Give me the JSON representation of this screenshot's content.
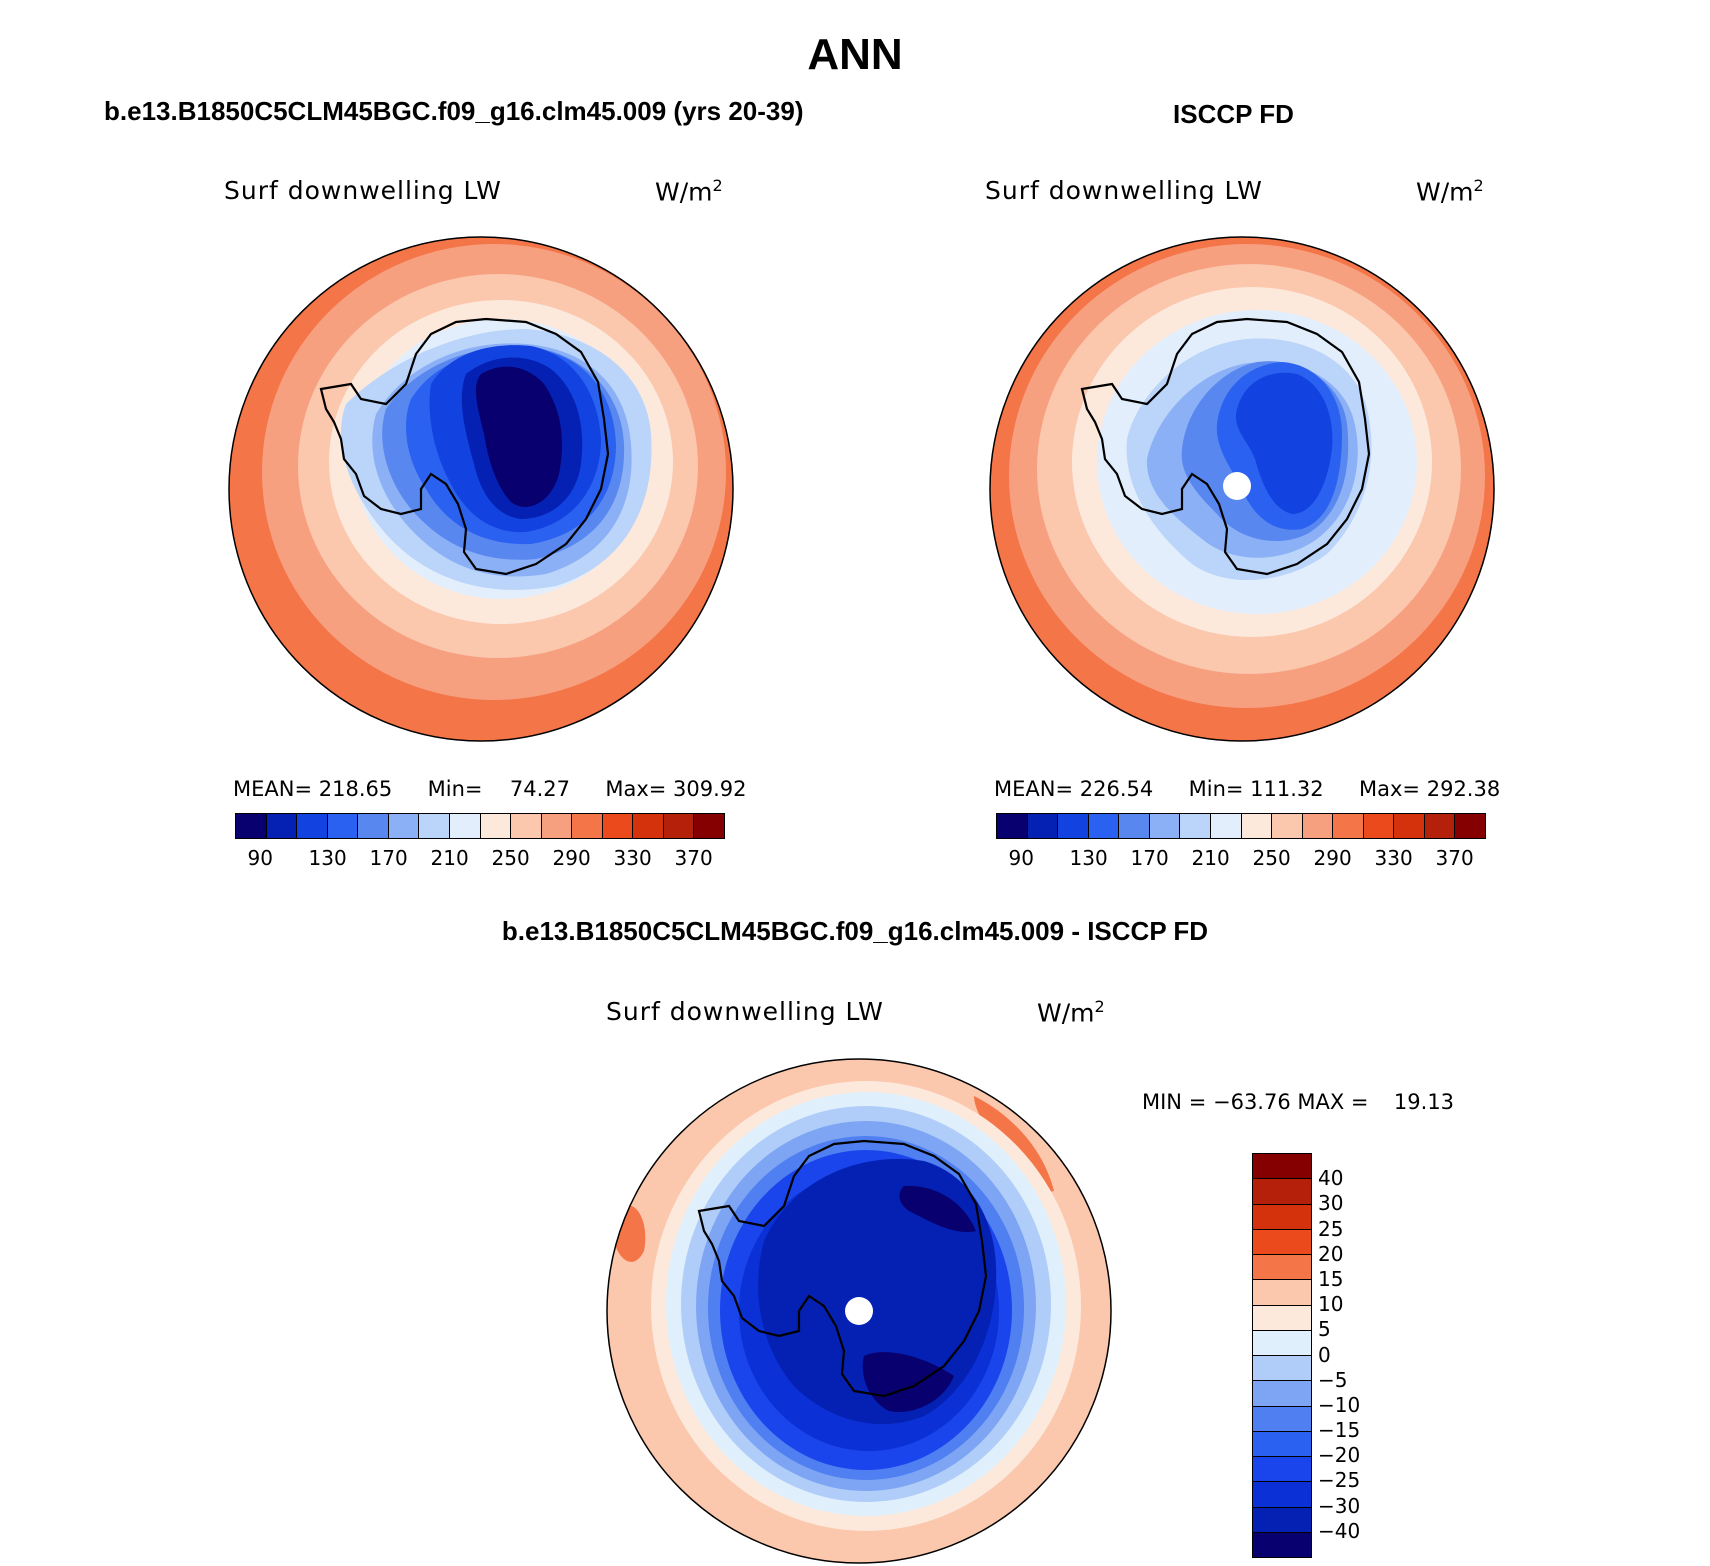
{
  "page": {
    "season": "ANN",
    "panel_left_title": "b.e13.B1850C5CLM45BGC.f09_g16.clm45.009 (yrs 20-39)",
    "panel_right_title": "ISCCP FD",
    "panel_bottom_title": "b.e13.B1850C5CLM45BGC.f09_g16.clm45.009 - ISCCP FD"
  },
  "colors": {
    "abs_scale": [
      "#08006e",
      "#0521b3",
      "#1242e0",
      "#2b61f0",
      "#5887f0",
      "#8cb0f5",
      "#bad4fa",
      "#e2eefc",
      "#fce9dc",
      "#fbc7ad",
      "#f7a080",
      "#f47548",
      "#ea4a1c",
      "#d3320d",
      "#b5200a",
      "#850000"
    ],
    "diff_scale": [
      "#08006e",
      "#0521b3",
      "#0a30d6",
      "#1a45ec",
      "#2b61f0",
      "#4f7ff0",
      "#7ea5f3",
      "#b0cdf9",
      "#dfeffc",
      "#fce9dc",
      "#fbc7ad",
      "#f47548",
      "#ea4a1c",
      "#d3320d",
      "#b5200a",
      "#850000"
    ],
    "coastline": "#000000"
  },
  "panels": {
    "left": {
      "variable": "Surf downwelling LW",
      "units_base": "W/m",
      "units_exp": "2",
      "mean_label": "MEAN=",
      "mean": "218.65",
      "min_label": "Min=",
      "min": "74.27",
      "max_label": "Max=",
      "max": "309.92"
    },
    "right": {
      "variable": "Surf downwelling LW",
      "units_base": "W/m",
      "units_exp": "2",
      "mean_label": "MEAN=",
      "mean": "226.54",
      "min_label": "Min=",
      "min": "111.32",
      "max_label": "Max=",
      "max": "292.38"
    },
    "bottom": {
      "variable": "Surf downwelling LW",
      "units_base": "W/m",
      "units_exp": "2",
      "min_label": "MIN =",
      "min": "−63.76",
      "max_label": "MAX =",
      "max": "19.13"
    }
  },
  "abs_colorbar_ticks": [
    "90",
    "130",
    "170",
    "210",
    "250",
    "290",
    "330",
    "370"
  ],
  "diff_colorbar_ticks": [
    "40",
    "30",
    "25",
    "20",
    "15",
    "10",
    "5",
    "0",
    "−5",
    "−10",
    "−15",
    "−20",
    "−25",
    "−30",
    "−40"
  ]
}
